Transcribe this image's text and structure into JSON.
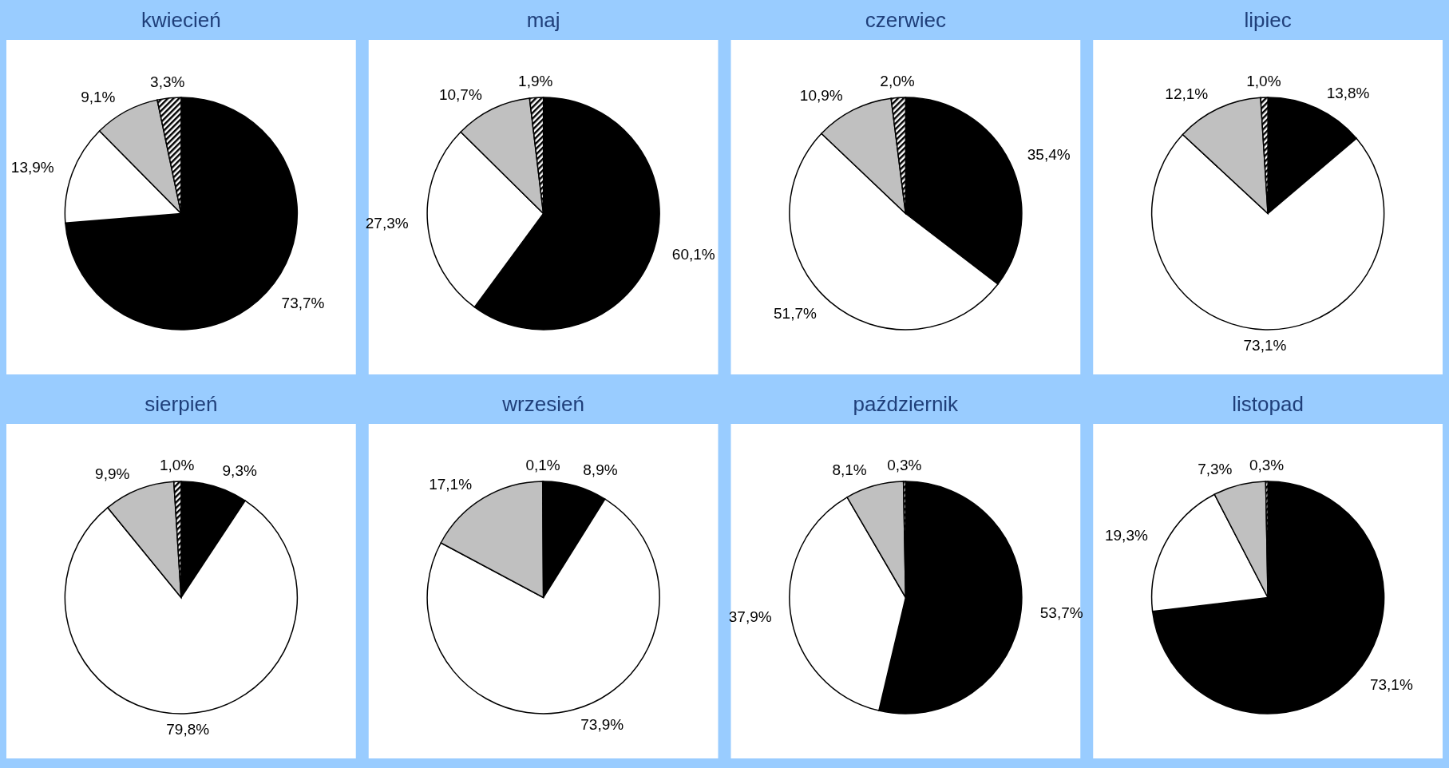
{
  "chart_data": [
    {
      "type": "pie",
      "title": "kwiecień",
      "categories": [
        null,
        null,
        null,
        null
      ],
      "values": [
        73.7,
        13.9,
        9.1,
        3.3
      ],
      "colors": [
        "#000000",
        "#ffffff",
        "#c0c0c0",
        "#000000"
      ],
      "value_labels": [
        "73,7%",
        "13,9%",
        "9,1%",
        "3,3%"
      ]
    },
    {
      "type": "pie",
      "title": "maj",
      "categories": [
        null,
        null,
        null,
        null
      ],
      "values": [
        60.1,
        27.3,
        10.7,
        1.9
      ],
      "colors": [
        "#000000",
        "#ffffff",
        "#c0c0c0",
        "#000000"
      ],
      "value_labels": [
        "60,1%",
        "27,3%",
        "10,7%",
        "1,9%"
      ]
    },
    {
      "type": "pie",
      "title": "czerwiec",
      "categories": [
        null,
        null,
        null,
        null
      ],
      "values": [
        35.4,
        51.7,
        10.9,
        2.0
      ],
      "colors": [
        "#000000",
        "#ffffff",
        "#c0c0c0",
        "#000000"
      ],
      "value_labels": [
        "35,4%",
        "51,7%",
        "10,9%",
        "2,0%"
      ]
    },
    {
      "type": "pie",
      "title": "lipiec",
      "categories": [
        null,
        null,
        null,
        null
      ],
      "values": [
        13.8,
        73.1,
        12.1,
        1.0
      ],
      "colors": [
        "#000000",
        "#ffffff",
        "#c0c0c0",
        "#000000"
      ],
      "value_labels": [
        "13,8%",
        "73,1%",
        "12,1%",
        "1,0%"
      ]
    },
    {
      "type": "pie",
      "title": "sierpień",
      "categories": [
        null,
        null,
        null,
        null
      ],
      "values": [
        9.3,
        79.8,
        9.9,
        1.0
      ],
      "colors": [
        "#000000",
        "#ffffff",
        "#c0c0c0",
        "#000000"
      ],
      "value_labels": [
        "9,3%",
        "79,8%",
        "9,9%",
        "1,0%"
      ]
    },
    {
      "type": "pie",
      "title": "wrzesień",
      "categories": [
        null,
        null,
        null,
        null
      ],
      "values": [
        8.9,
        73.9,
        17.1,
        0.1
      ],
      "colors": [
        "#000000",
        "#ffffff",
        "#c0c0c0",
        "#000000"
      ],
      "value_labels": [
        "8,9%",
        "73,9%",
        "17,1%",
        "0,1%"
      ]
    },
    {
      "type": "pie",
      "title": "październik",
      "categories": [
        null,
        null,
        null,
        null
      ],
      "values": [
        53.7,
        37.9,
        8.1,
        0.3
      ],
      "colors": [
        "#000000",
        "#ffffff",
        "#c0c0c0",
        "#000000"
      ],
      "value_labels": [
        "53,7%",
        "37,9%",
        "8,1%",
        "0,3%"
      ]
    },
    {
      "type": "pie",
      "title": "listopad",
      "categories": [
        null,
        null,
        null,
        null
      ],
      "values": [
        73.1,
        19.3,
        7.3,
        0.3
      ],
      "colors": [
        "#000000",
        "#ffffff",
        "#c0c0c0",
        "#000000"
      ],
      "value_labels": [
        "73,1%",
        "19,3%",
        "7,3%",
        "0,3%"
      ]
    }
  ]
}
